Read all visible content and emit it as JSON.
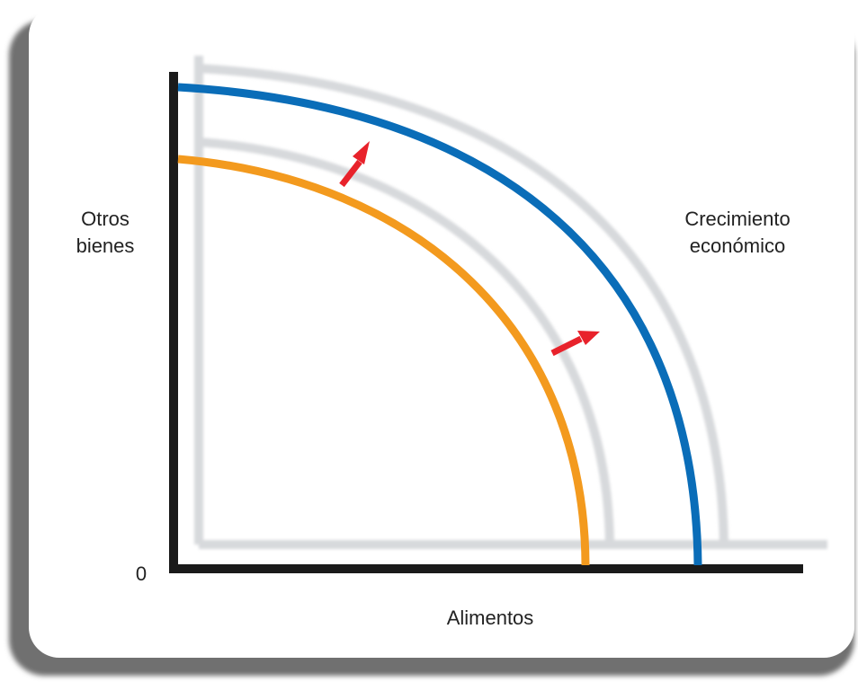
{
  "labels": {
    "y_axis_line1": "Otros",
    "y_axis_line2": "bienes",
    "x_axis": "Alimentos",
    "origin": "0",
    "curve_line1": "Crecimiento",
    "curve_line2": "económico"
  },
  "curves": {
    "original_color": "#f39a1e",
    "shifted_color": "#0a6db8",
    "shadow_color": "#d7d9dc"
  },
  "arrows": {
    "color": "#e8222b",
    "count": 2
  },
  "frame": {
    "background": "#ffffff",
    "border_shadow": "#6f6f6f",
    "axis_color": "#1a1a1a"
  }
}
